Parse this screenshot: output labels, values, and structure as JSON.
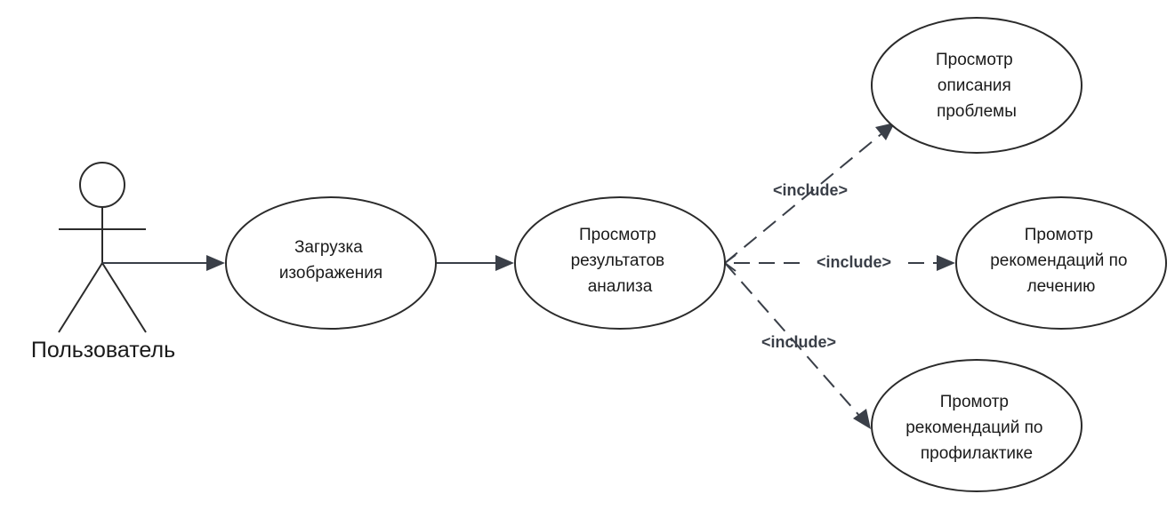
{
  "diagram": {
    "actor": {
      "label": "Пользователь"
    },
    "use_cases": {
      "upload": [
        "Загрузка",
        "изображения"
      ],
      "results": [
        "Просмотр",
        "результатов",
        "анализа"
      ],
      "problem": [
        "Просмотр",
        "описания",
        "проблемы"
      ],
      "treatment": [
        "Промотр",
        "рекомендаций по",
        "лечению"
      ],
      "prevention": [
        "Промотр",
        "рекомендаций по",
        "профилактике"
      ]
    },
    "relations": {
      "include_problem": "<include>",
      "include_treatment": "<include>",
      "include_prevention": "<include>"
    },
    "colors": {
      "stroke": "#2b2b2b",
      "edge": "#3a3f48",
      "background": "#ffffff"
    }
  }
}
